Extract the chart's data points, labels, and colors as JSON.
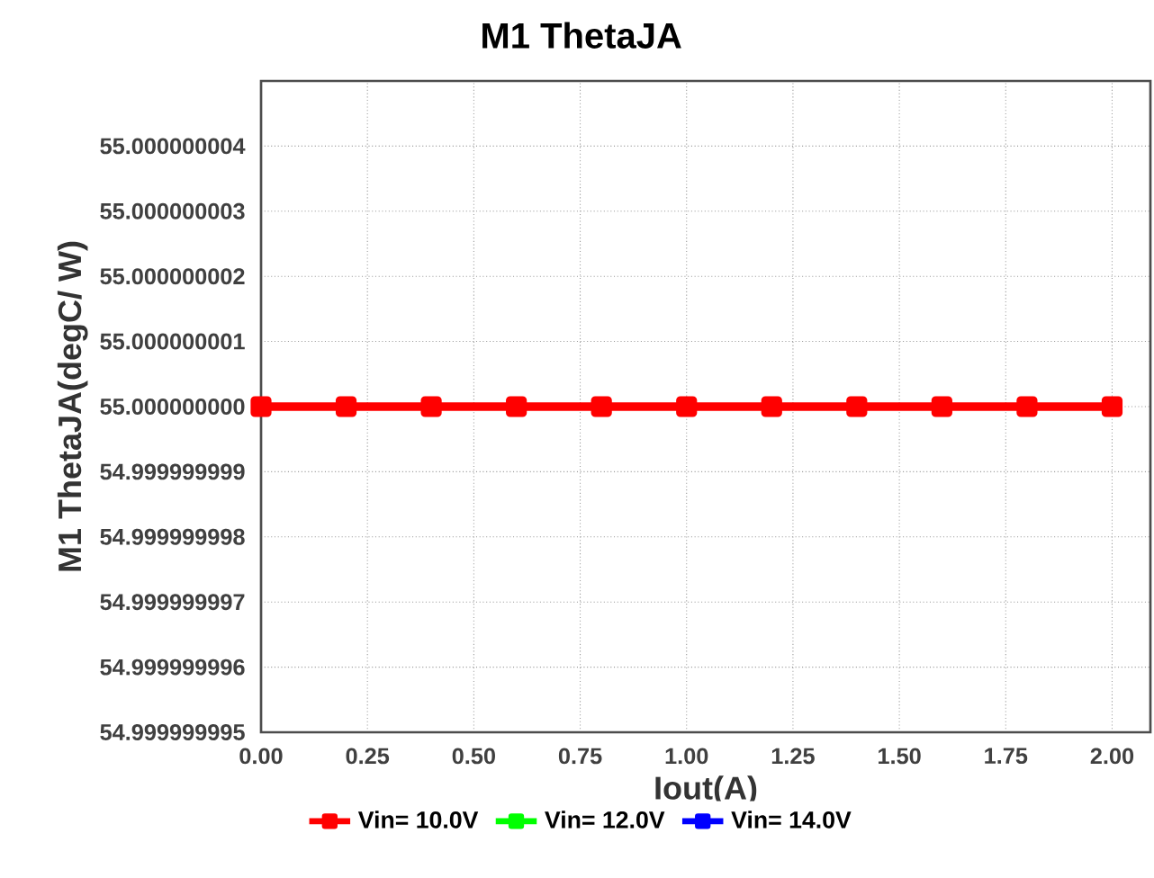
{
  "chart_data": {
    "type": "line",
    "title": "M1  ThetaJA",
    "xlabel": "Iout(A)",
    "ylabel": "M1  ThetaJA(degC/ W)",
    "x": [
      0,
      0.2,
      0.4,
      0.6,
      0.8,
      1.0,
      1.2,
      1.4,
      1.6,
      1.8,
      2.0
    ],
    "series": [
      {
        "name": "Vin= 10.0V",
        "color": "#ff0000",
        "values": [
          55,
          55,
          55,
          55,
          55,
          55,
          55,
          55,
          55,
          55,
          55
        ]
      },
      {
        "name": "Vin= 12.0V",
        "color": "#00ff00",
        "values": [
          null,
          null,
          null,
          null,
          null,
          null,
          null,
          null,
          null,
          null,
          null
        ]
      },
      {
        "name": "Vin= 14.0V",
        "color": "#0000ff",
        "values": [
          null,
          null,
          null,
          null,
          null,
          null,
          null,
          null,
          null,
          null,
          null
        ]
      }
    ],
    "xlim": [
      0,
      2.09
    ],
    "xticks": [
      {
        "value": 0,
        "label": "0.00"
      },
      {
        "value": 0.25,
        "label": "0.25"
      },
      {
        "value": 0.5,
        "label": "0.50"
      },
      {
        "value": 0.75,
        "label": "0.75"
      },
      {
        "value": 1,
        "label": "1.00"
      },
      {
        "value": 1.25,
        "label": "1.25"
      },
      {
        "value": 1.5,
        "label": "1.50"
      },
      {
        "value": 1.75,
        "label": "1.75"
      },
      {
        "value": 2,
        "label": "2.00"
      }
    ],
    "ylim": [
      54.999999995,
      55.000000005
    ],
    "yticks": [
      54.999999995,
      54.999999996,
      54.999999997,
      54.999999998,
      54.999999999,
      {
        "value": 55,
        "label": "55.000000000"
      },
      55.000000001,
      55.000000002,
      55.000000003,
      55.000000004
    ],
    "grid": true,
    "legend": "bottom",
    "marker": "square",
    "line_style": "solid"
  }
}
